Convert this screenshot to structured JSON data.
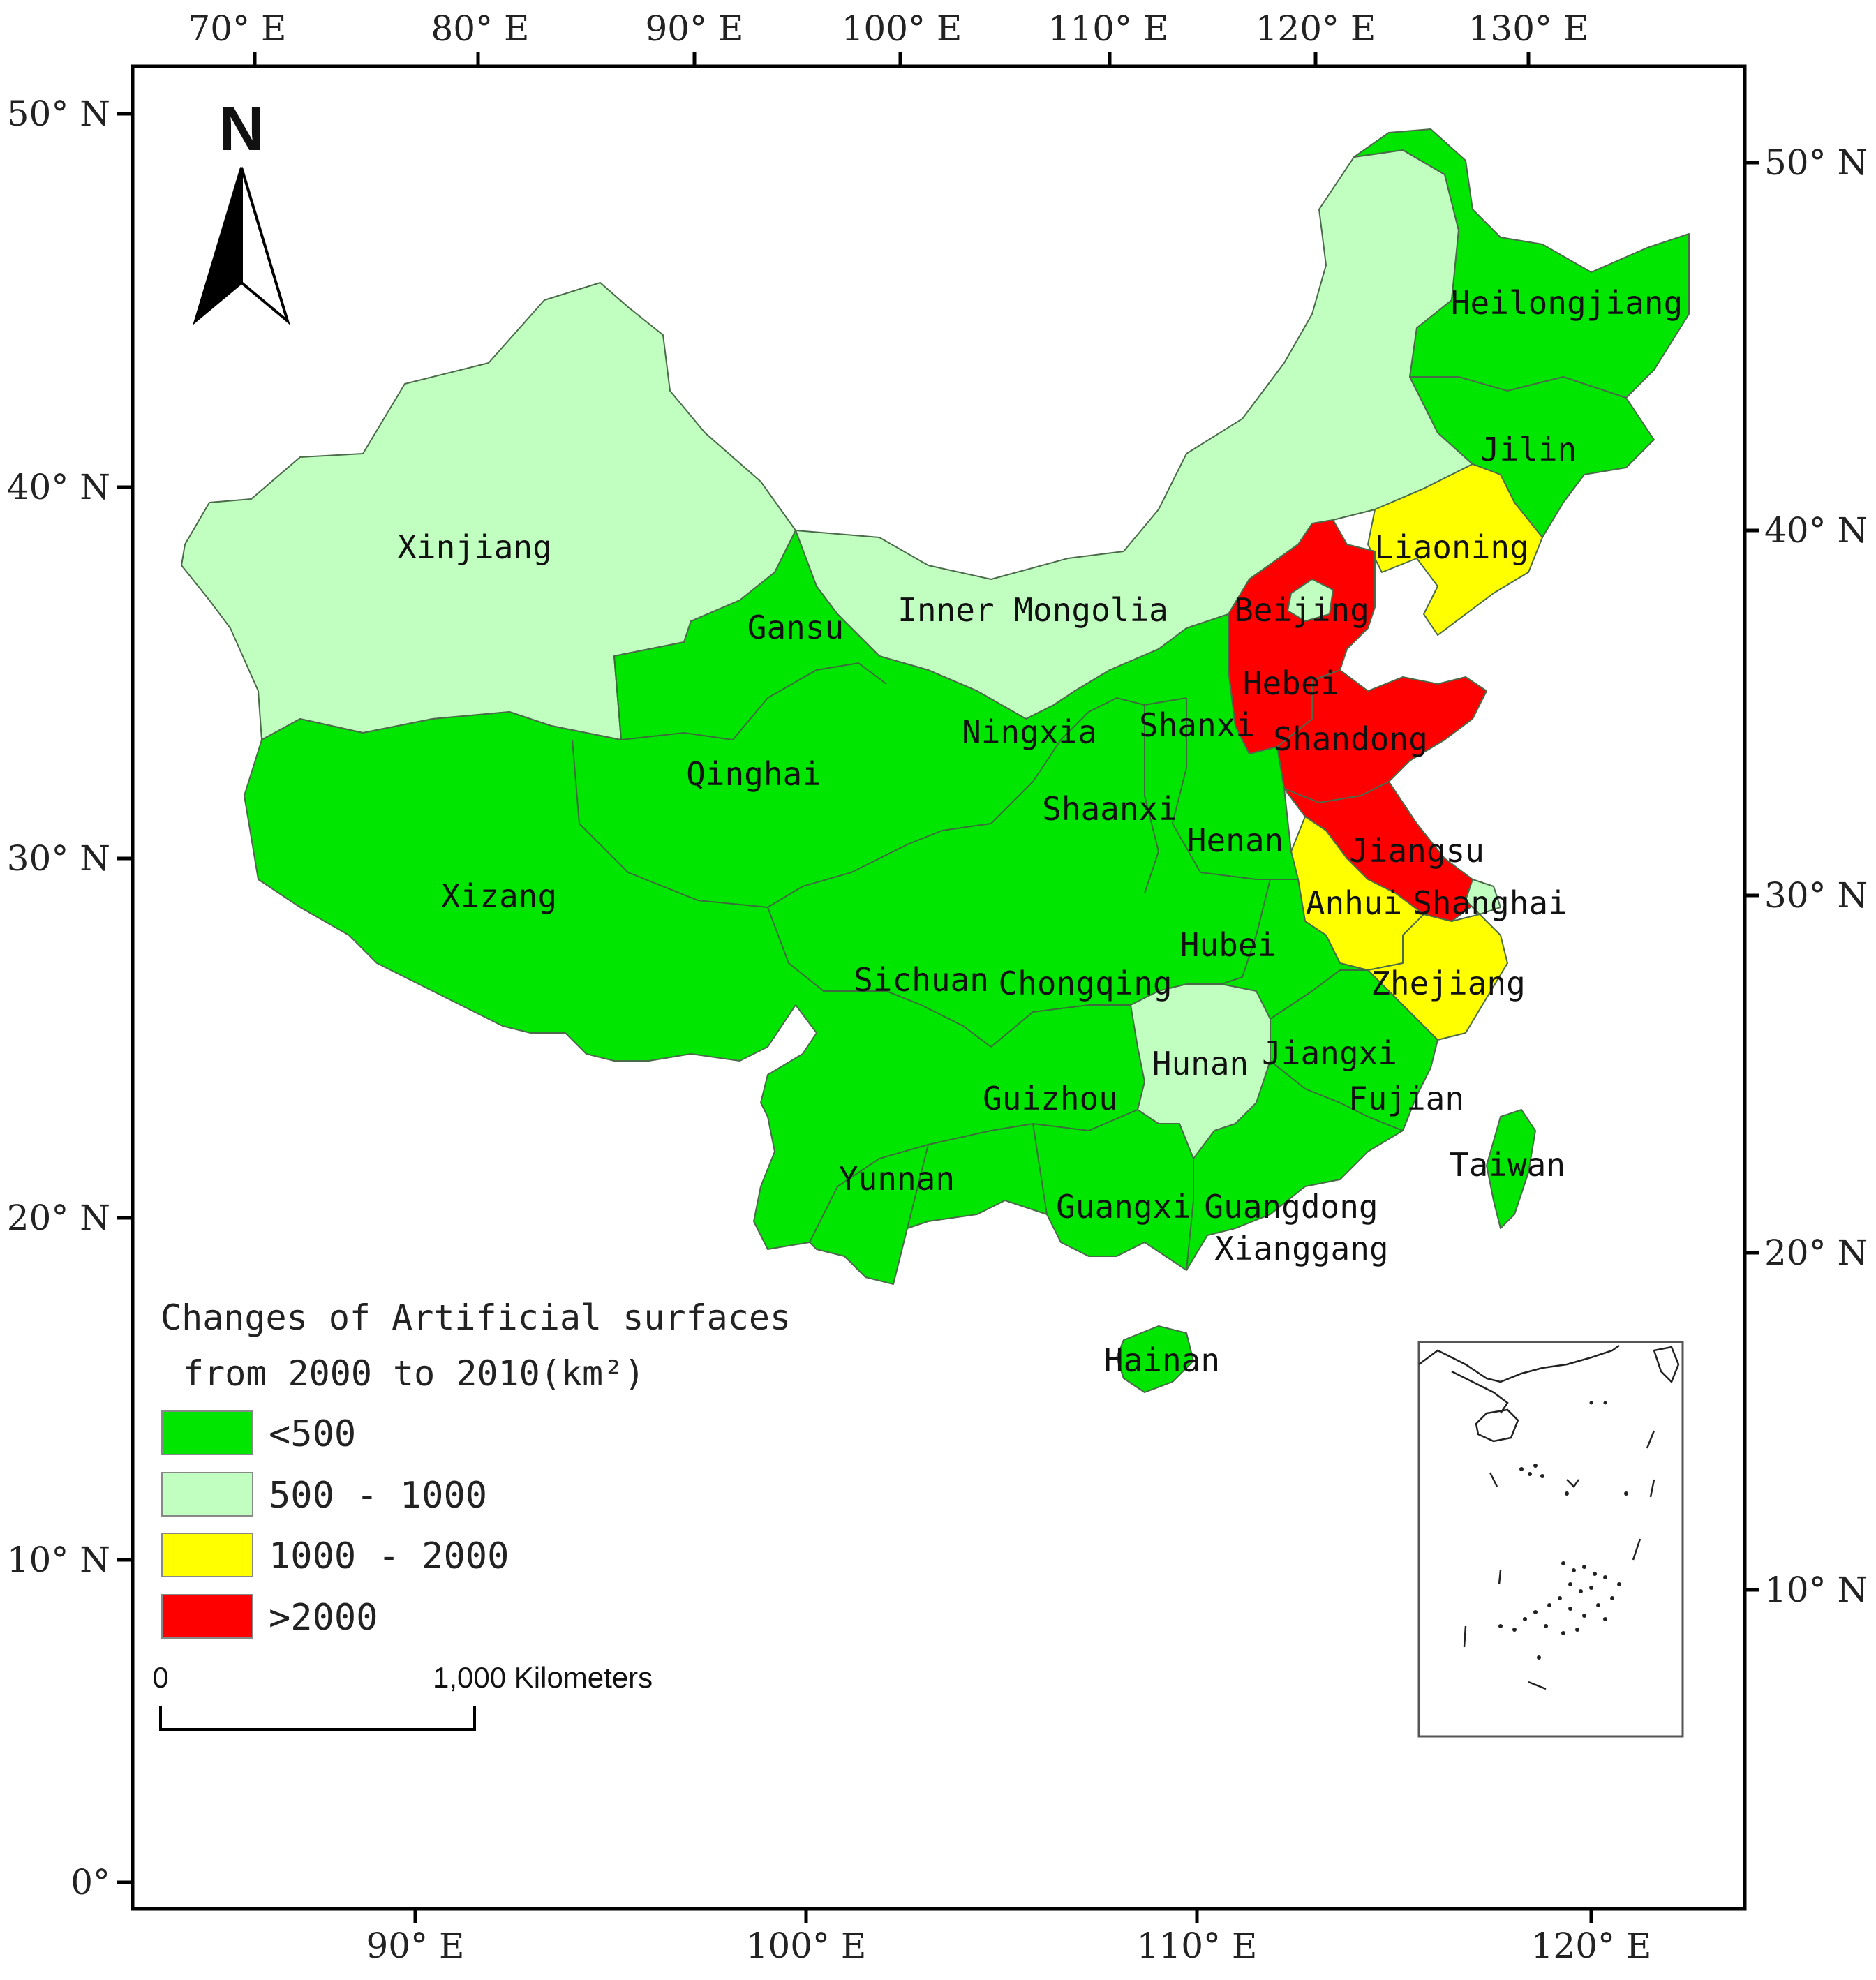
{
  "map": {
    "top_ticks": [
      "70° E",
      "80° E",
      "90° E",
      "100° E",
      "110° E",
      "120° E",
      "130° E"
    ],
    "bottom_ticks": [
      "90° E",
      "100° E",
      "110° E",
      "120° E"
    ],
    "left_ticks": [
      "50° N",
      "40° N",
      "30° N",
      "20° N",
      "10° N",
      "0°"
    ],
    "right_ticks": [
      "50° N",
      "40° N",
      "30° N",
      "20° N",
      "10° N"
    ],
    "north_arrow": "N",
    "legend": {
      "title_line1": "Changes of Artificial surfaces",
      "title_line2": "from 2000 to 2010(km²)",
      "classes": [
        {
          "label": "<500",
          "color": "#00e600"
        },
        {
          "label": "500 - 1000",
          "color": "#c0ffc0"
        },
        {
          "label": "1000 - 2000",
          "color": "#ffff00"
        },
        {
          "label": ">2000",
          "color": "#ff0000"
        }
      ]
    },
    "scale_bar": {
      "start": "0",
      "end": "1,000 Kilometers"
    },
    "provinces": [
      {
        "name": "Xinjiang",
        "class": "500 - 1000"
      },
      {
        "name": "Inner Mongolia",
        "class": "500 - 1000"
      },
      {
        "name": "Hunan",
        "class": "500 - 1000"
      },
      {
        "name": "Shanghai",
        "class": "500 - 1000"
      },
      {
        "name": "Heilongjiang",
        "class": "<500"
      },
      {
        "name": "Jilin",
        "class": "<500"
      },
      {
        "name": "Liaoning",
        "class": "1000 - 2000"
      },
      {
        "name": "Beijing",
        "class": ">2000"
      },
      {
        "name": "Hebei",
        "class": ">2000"
      },
      {
        "name": "Shandong",
        "class": ">2000"
      },
      {
        "name": "Jiangsu",
        "class": ">2000"
      },
      {
        "name": "Anhui",
        "class": "1000 - 2000"
      },
      {
        "name": "Zhejiang",
        "class": "1000 - 2000"
      },
      {
        "name": "Gansu",
        "class": "<500"
      },
      {
        "name": "Ningxia",
        "class": "<500"
      },
      {
        "name": "Shanxi",
        "class": "<500"
      },
      {
        "name": "Qinghai",
        "class": "<500"
      },
      {
        "name": "Shaanxi",
        "class": "<500"
      },
      {
        "name": "Henan",
        "class": "<500"
      },
      {
        "name": "Xizang",
        "class": "<500"
      },
      {
        "name": "Hubei",
        "class": "<500"
      },
      {
        "name": "Sichuan",
        "class": "<500"
      },
      {
        "name": "Chongqing",
        "class": "<500"
      },
      {
        "name": "Jiangxi",
        "class": "<500"
      },
      {
        "name": "Guizhou",
        "class": "<500"
      },
      {
        "name": "Fujian",
        "class": "<500"
      },
      {
        "name": "Taiwan",
        "class": "<500"
      },
      {
        "name": "Yunnan",
        "class": "<500"
      },
      {
        "name": "Guangxi",
        "class": "<500"
      },
      {
        "name": "Guangdong",
        "class": "<500"
      },
      {
        "name": "Xianggang",
        "class": "<500"
      },
      {
        "name": "Hainan",
        "class": "<500"
      }
    ]
  }
}
